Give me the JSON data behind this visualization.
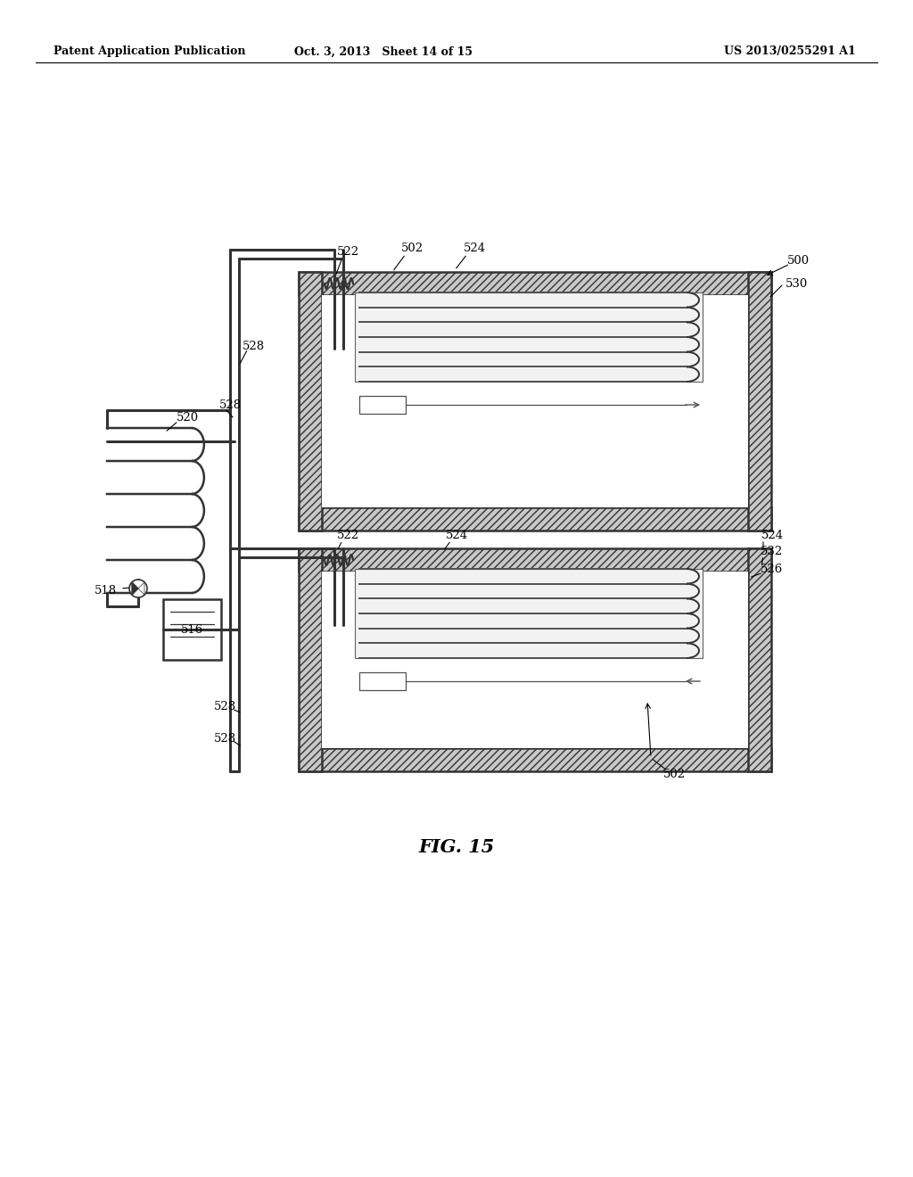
{
  "background_color": "#ffffff",
  "header_left": "Patent Application Publication",
  "header_mid": "Oct. 3, 2013   Sheet 14 of 15",
  "header_right": "US 2013/0255291 A1",
  "fig_label": "FIG. 15",
  "line_color": "#333333",
  "label_fontsize": 9.5,
  "header_fontsize": 9,
  "fig_fontsize": 15
}
